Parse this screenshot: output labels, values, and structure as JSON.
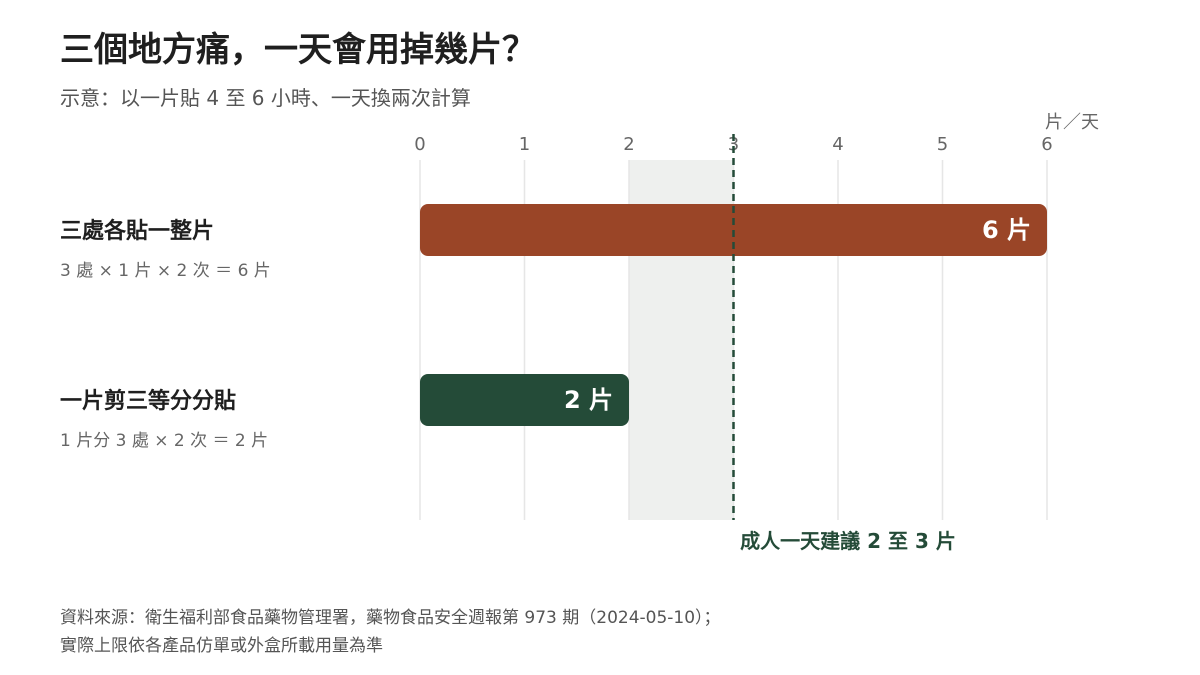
{
  "title": "三個地方痛，一天會用掉幾片？",
  "subtitle": "示意：以一片貼 4 至 6 小時、一天換兩次計算",
  "colors": {
    "bar_primary": "#9a4527",
    "bar_secondary": "#244b38",
    "reference": "#244b38",
    "band": "#eef0ee",
    "grid": "#e6e6e6"
  },
  "chart_data": {
    "type": "bar",
    "orientation": "horizontal",
    "unit_label": "片／天",
    "xlim": [
      0,
      6
    ],
    "ticks": [
      "0",
      "1",
      "2",
      "3",
      "4",
      "5",
      "6"
    ],
    "grid": true,
    "categories": [
      {
        "label": "三處各貼一整片",
        "formula": "3 處 × 1 片 × 2 次 ＝ 6 片",
        "value": 6,
        "value_label": "6 片"
      },
      {
        "label": "一片剪三等分分貼",
        "formula": "1 片分 3 處 × 2 次 ＝ 2 片",
        "value": 2,
        "value_label": "2 片"
      }
    ],
    "recommended_range": [
      2,
      3
    ],
    "reference_line": {
      "value": 3,
      "label": "成人一天建議 2 至 3 片"
    }
  },
  "source": {
    "line1": "資料來源：衛生福利部食品藥物管理署，藥物食品安全週報第 973 期（2024-05-10）；",
    "line2": "實際上限依各產品仿單或外盒所載用量為準"
  }
}
